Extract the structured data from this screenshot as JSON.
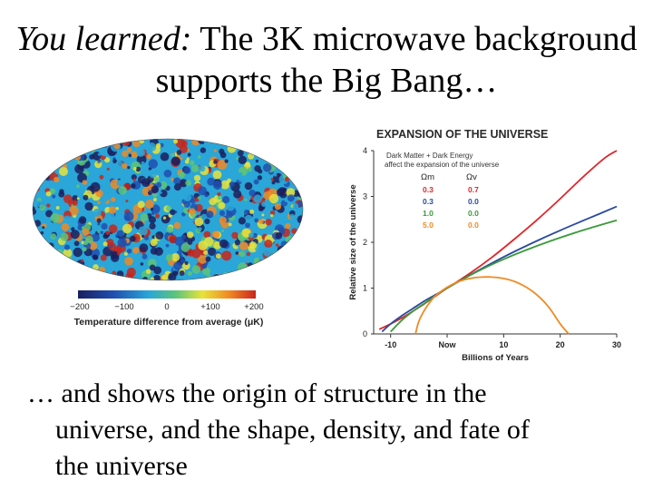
{
  "slide": {
    "title_italic": "You learned:",
    "title_rest": "The 3K microwave background supports the Big Bang…",
    "body_line1": "… and shows the origin of structure in the",
    "body_line2": "universe, and the shape, density, and fate of",
    "body_line3": "the universe"
  },
  "cmb_map": {
    "scale_ticks": [
      "−200",
      "−100",
      "0",
      "+100",
      "+200"
    ],
    "caption": "Temperature difference from average (μK)",
    "colors": [
      "#1a1f5e",
      "#1f4fb0",
      "#2aa6d8",
      "#5cc47a",
      "#e8e33a",
      "#f08a24",
      "#c8261b"
    ]
  },
  "chart_data": {
    "type": "line",
    "title": "EXPANSION OF THE UNIVERSE",
    "xlabel": "Billions of Years",
    "ylabel": "Relative size of the universe",
    "xlim": [
      -13,
      30
    ],
    "ylim": [
      0,
      4
    ],
    "x_ticks": [
      "-10",
      "Now",
      "10",
      "20",
      "30"
    ],
    "x_tick_values": [
      -10,
      0,
      10,
      20,
      30
    ],
    "y_ticks": [
      "0",
      "1",
      "2",
      "3",
      "4"
    ],
    "y_tick_values": [
      0,
      1,
      2,
      3,
      4
    ],
    "legend_note": "Dark Matter + Dark Energy affect the expansion of the universe",
    "legend_headers": [
      "Ωm",
      "Ωv"
    ],
    "legend_rows": [
      {
        "om": "0.3",
        "ov": "0.7",
        "color": "#e0262b"
      },
      {
        "om": "0.3",
        "ov": "0.0",
        "color": "#2a4aa0"
      },
      {
        "om": "1.0",
        "ov": "0.0",
        "color": "#3a9a3a"
      },
      {
        "om": "5.0",
        "ov": "0.0",
        "color": "#f08a24"
      }
    ],
    "series": [
      {
        "name": "Ωm 0.3, Ωv 0.7",
        "color": "#e0262b",
        "x": [
          -12,
          -10,
          -8,
          -6,
          -4,
          -2,
          0,
          4,
          8,
          12,
          16,
          20,
          24,
          28,
          30
        ],
        "y": [
          0.1,
          0.22,
          0.35,
          0.5,
          0.66,
          0.83,
          1.0,
          1.32,
          1.68,
          2.08,
          2.5,
          2.95,
          3.42,
          3.85,
          4.0
        ]
      },
      {
        "name": "Ωm 0.3, Ωv 0.0",
        "color": "#2a4aa0",
        "x": [
          -11.5,
          -10,
          -8,
          -6,
          -4,
          -2,
          0,
          5,
          10,
          15,
          20,
          25,
          30
        ],
        "y": [
          0.05,
          0.22,
          0.4,
          0.56,
          0.72,
          0.86,
          1.0,
          1.35,
          1.68,
          1.98,
          2.26,
          2.52,
          2.78
        ]
      },
      {
        "name": "Ωm 1.0, Ωv 0.0",
        "color": "#3a9a3a",
        "x": [
          -10,
          -8,
          -6,
          -4,
          -2,
          0,
          5,
          10,
          15,
          20,
          25,
          30
        ],
        "y": [
          0.05,
          0.3,
          0.5,
          0.67,
          0.84,
          1.0,
          1.34,
          1.63,
          1.88,
          2.1,
          2.3,
          2.48
        ]
      },
      {
        "name": "Ωm 5.0, Ωv 0.0",
        "color": "#f08a24",
        "x": [
          -5.6,
          -5,
          -4,
          -3,
          -2,
          0,
          2,
          4,
          6,
          8,
          10,
          12,
          14,
          16,
          18,
          20,
          21.5
        ],
        "y": [
          0,
          0.28,
          0.52,
          0.7,
          0.84,
          1.02,
          1.14,
          1.21,
          1.24,
          1.24,
          1.21,
          1.14,
          1.02,
          0.84,
          0.58,
          0.22,
          0
        ]
      }
    ]
  }
}
